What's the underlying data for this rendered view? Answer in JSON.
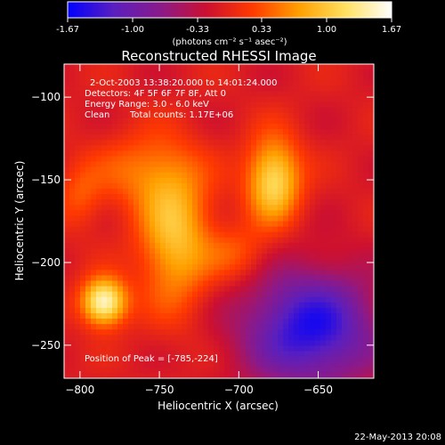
{
  "colorbar": {
    "tick_labels": [
      "-1.67",
      "-1.00",
      "-0.33",
      "0.33",
      "1.00",
      "1.67"
    ],
    "tick_values": [
      -1.67,
      -1.0,
      -0.33,
      0.33,
      1.0,
      1.67
    ],
    "range": [
      -1.67,
      1.67
    ],
    "unit_label": "(photons cm⁻² s⁻¹ asec⁻²)",
    "colors": [
      "#0000ff",
      "#5a1fbf",
      "#8a1a8a",
      "#cc1030",
      "#ff3a00",
      "#ffa000",
      "#ffe060",
      "#ffffff"
    ]
  },
  "chart_data": {
    "type": "heatmap",
    "title": "Reconstructed RHESSI Image",
    "xlabel": "Heliocentric X (arcsec)",
    "ylabel": "Heliocentric Y (arcsec)",
    "xlim": [
      -810,
      -615
    ],
    "ylim": [
      -270,
      -80
    ],
    "xticks": [
      -800,
      -750,
      -700,
      -650
    ],
    "yticks": [
      -100,
      -150,
      -200,
      -250
    ],
    "annotations": {
      "time": "2-Oct-2003 13:38:20.000 to 14:01:24.000",
      "detectors": "Detectors: 4F 5F 6F 7F 8F, Att 0",
      "energy": "Energy Range: 3.0 - 6.0 keV",
      "clean_label": "Clean",
      "counts": "Total counts: 1.17E+06",
      "peak": "Position of Peak = [-785,-224]"
    },
    "peak": [
      -785,
      -224
    ],
    "sources": [
      {
        "x": -785,
        "y": -224,
        "sigma_x": 10,
        "sigma_y": 10,
        "amp": 1.67
      },
      {
        "x": -740,
        "y": -185,
        "sigma_x": 16,
        "sigma_y": 30,
        "amp": 1.05
      },
      {
        "x": -678,
        "y": -150,
        "sigma_x": 12,
        "sigma_y": 18,
        "amp": 1.3
      },
      {
        "x": -760,
        "y": -145,
        "sigma_x": 22,
        "sigma_y": 16,
        "amp": 0.55
      },
      {
        "x": -800,
        "y": -160,
        "sigma_x": 10,
        "sigma_y": 14,
        "amp": 0.4
      },
      {
        "x": -700,
        "y": -195,
        "sigma_x": 14,
        "sigma_y": 12,
        "amp": 0.45
      }
    ],
    "background_level": -0.1,
    "negative_region": {
      "x": -655,
      "y": -240,
      "sigma_x": 30,
      "sigma_y": 25,
      "amp": -1.4
    }
  },
  "footer": {
    "timestamp": "22-May-2013 20:08"
  }
}
